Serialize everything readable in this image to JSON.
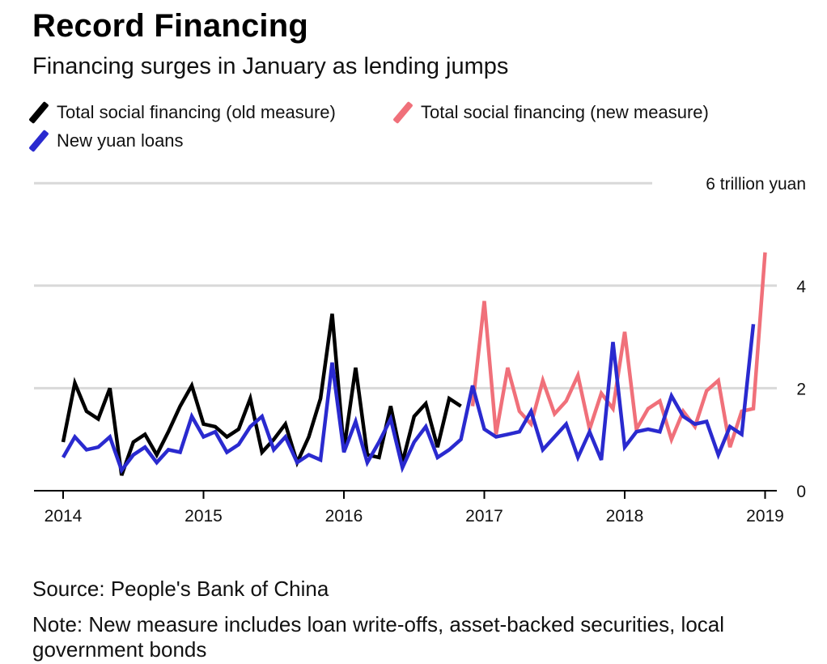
{
  "title": "Record Financing",
  "subtitle": "Financing surges in January as lending jumps",
  "colors": {
    "old": "#000000",
    "new": "#f0707a",
    "loans": "#2a2acf",
    "grid": "#d9d9d9"
  },
  "chart_data": {
    "type": "line",
    "title": "Record Financing",
    "subtitle": "Financing surges in January as lending jumps",
    "ylabel": "6 trillion yuan",
    "ylim": [
      0,
      6
    ],
    "yticks": [
      0,
      2,
      4,
      6
    ],
    "ytick_labels": [
      "0",
      "2",
      "4",
      "6 trillion yuan"
    ],
    "xlim": [
      2014,
      2019.2
    ],
    "xticks": [
      2014,
      2015,
      2016,
      2017,
      2018,
      2019
    ],
    "xtick_labels": [
      "2014",
      "2015",
      "2016",
      "2017",
      "2018",
      "2019"
    ],
    "legend": [
      "Total social financing (old measure)",
      "Total social financing (new measure)",
      "New yuan loans"
    ],
    "series": [
      {
        "name": "Total social financing (old measure)",
        "color": "#000000",
        "start_month": 0,
        "values": [
          0.95,
          2.1,
          1.55,
          1.4,
          2.0,
          0.3,
          0.95,
          1.1,
          0.7,
          1.15,
          1.65,
          2.05,
          1.3,
          1.25,
          1.05,
          1.2,
          1.8,
          0.75,
          1.0,
          1.3,
          0.55,
          1.05,
          1.8,
          3.45,
          0.8,
          2.4,
          0.7,
          0.65,
          1.65,
          0.55,
          1.45,
          1.7,
          0.85,
          1.8,
          1.65
        ]
      },
      {
        "name": "Total social financing (new measure)",
        "color": "#f0707a",
        "start_month": 35,
        "values": [
          1.65,
          3.7,
          1.1,
          2.4,
          1.55,
          1.3,
          2.15,
          1.5,
          1.75,
          2.25,
          1.2,
          1.9,
          1.6,
          3.1,
          1.2,
          1.6,
          1.75,
          1.0,
          1.55,
          1.25,
          1.95,
          2.15,
          0.85,
          1.55,
          1.6,
          4.65
        ]
      },
      {
        "name": "New yuan loans",
        "color": "#2a2acf",
        "start_month": 0,
        "values": [
          0.65,
          1.05,
          0.8,
          0.85,
          1.05,
          0.4,
          0.7,
          0.85,
          0.55,
          0.8,
          0.75,
          1.45,
          1.05,
          1.15,
          0.75,
          0.9,
          1.25,
          1.45,
          0.8,
          1.05,
          0.55,
          0.7,
          0.6,
          2.5,
          0.75,
          1.35,
          0.55,
          0.95,
          1.4,
          0.45,
          0.95,
          1.25,
          0.65,
          0.8,
          1.0,
          2.05,
          1.2,
          1.05,
          1.1,
          1.15,
          1.55,
          0.8,
          1.05,
          1.3,
          0.65,
          1.15,
          0.6,
          2.9,
          0.85,
          1.15,
          1.2,
          1.15,
          1.85,
          1.45,
          1.3,
          1.35,
          0.7,
          1.25,
          1.1,
          3.25
        ]
      }
    ]
  },
  "source": "Source: People's Bank of China",
  "note": "Note: New measure includes loan write-offs, asset-backed securities, local government bonds"
}
